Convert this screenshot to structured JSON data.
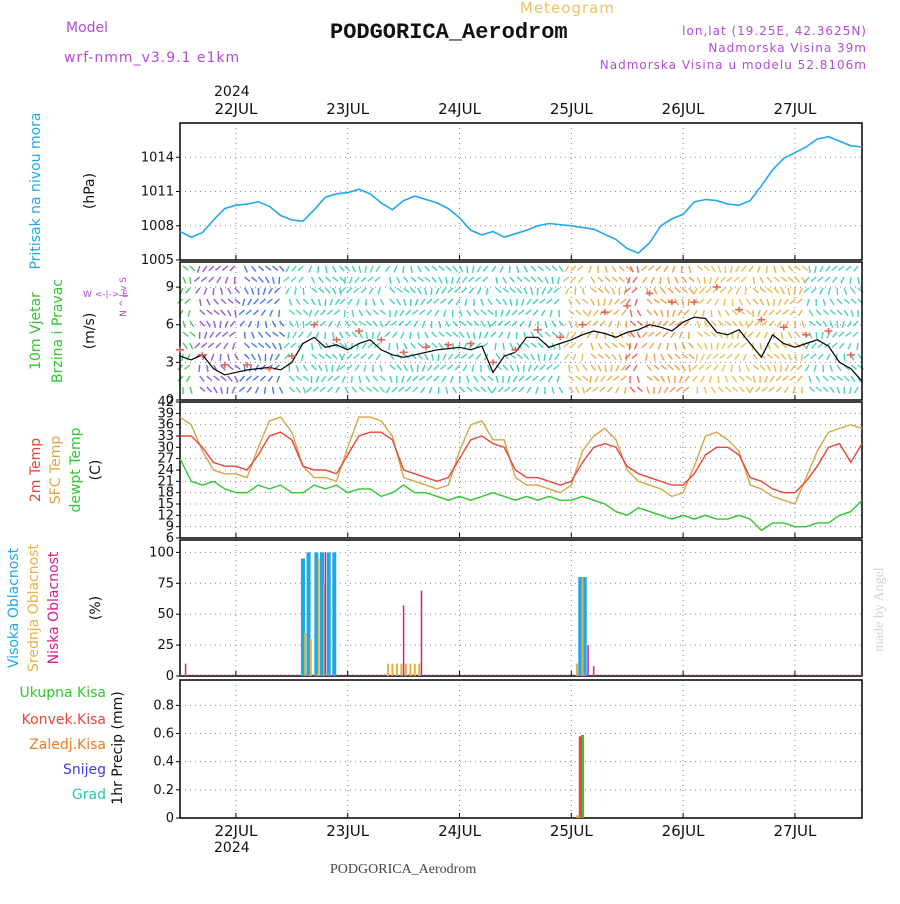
{
  "header": {
    "model_label": "Model",
    "model_name": "wrf-nmm_v3.9.1  e1km",
    "meteogram_label": "Meteogram",
    "station": "PODGORICA_Aerodrom",
    "lonlat": "lon,lat (19.25E, 42.3625N)",
    "elevation": "Nadmorska Visina 39m",
    "model_elevation": "Nadmorska Visina u modelu 52.8106m",
    "year": "2024",
    "footer_station": "PODGORICA_Aerodrom",
    "watermark": "made by Angel"
  },
  "colors": {
    "pressure": "#22a7f0",
    "temp2m": "#e8463a",
    "sfc": "#d8a545",
    "dewpt": "#2ec82e",
    "high_cloud": "#1ea8e8",
    "mid_cloud": "#e8b040",
    "low_cloud": "#d0208a",
    "purple": "#b44ad8",
    "orange": "#f0a020"
  },
  "chart_data": [
    {
      "type": "line",
      "panel": "pressure",
      "ylabel": [
        "Pritisak na nivou mora",
        "(hPa)"
      ],
      "ylim": [
        1005,
        1017
      ],
      "yticks": [
        1005,
        1008,
        1011,
        1014
      ],
      "x_labels": [
        "22JUL",
        "23JUL",
        "24JUL",
        "25JUL",
        "26JUL",
        "27JUL"
      ],
      "x_start_days": -0.5,
      "x_end_days": 5.6,
      "series": [
        {
          "x": [
            -0.5,
            -0.4,
            -0.3,
            -0.2,
            -0.1,
            0.0,
            0.1,
            0.2,
            0.3,
            0.4,
            0.5,
            0.6,
            0.7,
            0.8,
            0.9,
            1.0,
            1.1,
            1.2,
            1.3,
            1.4,
            1.5,
            1.6,
            1.7,
            1.8,
            1.9,
            2.0,
            2.1,
            2.2,
            2.3,
            2.4,
            2.5,
            2.6,
            2.7,
            2.8,
            3.0,
            3.2,
            3.4,
            3.5,
            3.6,
            3.7,
            3.8,
            3.9,
            4.0,
            4.1,
            4.2,
            4.3,
            4.4,
            4.5,
            4.6,
            4.7,
            4.8,
            4.9,
            5.0,
            5.1,
            5.2,
            5.3,
            5.4,
            5.5,
            5.6
          ],
          "values": [
            1007.5,
            1007.0,
            1007.4,
            1008.5,
            1009.5,
            1009.8,
            1009.9,
            1010.1,
            1009.7,
            1008.9,
            1008.5,
            1008.4,
            1009.4,
            1010.5,
            1010.8,
            1010.9,
            1011.2,
            1010.8,
            1010.0,
            1009.4,
            1010.2,
            1010.6,
            1010.3,
            1010.0,
            1009.5,
            1008.7,
            1007.6,
            1007.2,
            1007.5,
            1007.0,
            1007.3,
            1007.6,
            1008.0,
            1008.2,
            1008.0,
            1007.7,
            1006.8,
            1006.0,
            1005.6,
            1006.5,
            1008.0,
            1008.6,
            1009.0,
            1010.1,
            1010.3,
            1010.2,
            1009.9,
            1009.8,
            1010.2,
            1011.5,
            1012.9,
            1013.9,
            1014.4,
            1014.9,
            1015.6,
            1015.8,
            1015.4,
            1015.0,
            1014.9
          ]
        }
      ]
    },
    {
      "type": "line",
      "panel": "wind",
      "ylabel": [
        "10m Vjetar",
        "Brzina i Pravac",
        "(m/s)"
      ],
      "compass": "W <-|-> E",
      "compass_vert": "N ^ | v S",
      "ylim": [
        0,
        11
      ],
      "yticks": [
        0,
        3,
        6,
        9
      ],
      "series": [
        {
          "name": "speed",
          "x": [
            -0.5,
            -0.4,
            -0.3,
            -0.2,
            -0.1,
            0.0,
            0.1,
            0.2,
            0.3,
            0.4,
            0.5,
            0.6,
            0.7,
            0.8,
            0.9,
            1.0,
            1.1,
            1.2,
            1.3,
            1.4,
            1.5,
            1.6,
            1.7,
            1.8,
            1.9,
            2.0,
            2.1,
            2.2,
            2.3,
            2.4,
            2.5,
            2.6,
            2.7,
            2.8,
            2.9,
            3.0,
            3.1,
            3.2,
            3.3,
            3.4,
            3.5,
            3.6,
            3.7,
            3.8,
            3.9,
            4.0,
            4.1,
            4.2,
            4.3,
            4.4,
            4.5,
            4.6,
            4.7,
            4.8,
            4.9,
            5.0,
            5.1,
            5.2,
            5.3,
            5.4,
            5.5,
            5.6
          ],
          "values": [
            3.5,
            3.2,
            3.6,
            2.5,
            2.0,
            2.2,
            2.4,
            2.5,
            2.6,
            2.4,
            3.0,
            4.5,
            5.0,
            4.2,
            4.4,
            4.0,
            4.5,
            4.8,
            4.0,
            3.6,
            3.4,
            3.6,
            3.8,
            4.0,
            4.1,
            4.2,
            4.0,
            4.3,
            2.2,
            3.5,
            3.8,
            5.0,
            5.0,
            4.2,
            4.5,
            4.8,
            5.2,
            5.5,
            5.3,
            5.0,
            5.4,
            5.6,
            6.0,
            5.8,
            5.5,
            6.2,
            6.6,
            6.5,
            5.4,
            5.2,
            5.6,
            4.5,
            3.4,
            5.2,
            4.5,
            4.2,
            4.5,
            4.8,
            4.3,
            3.0,
            2.5,
            1.5
          ]
        },
        {
          "name": "gust",
          "x": [
            -0.5,
            -0.3,
            -0.1,
            0.1,
            0.3,
            0.5,
            0.7,
            0.9,
            1.1,
            1.3,
            1.5,
            1.7,
            1.9,
            2.1,
            2.3,
            2.5,
            2.7,
            2.9,
            3.1,
            3.3,
            3.5,
            3.7,
            3.9,
            4.1,
            4.3,
            4.5,
            4.7,
            4.9,
            5.1,
            5.3,
            5.5
          ],
          "values": [
            4.0,
            3.6,
            2.8,
            2.8,
            2.5,
            3.5,
            6.0,
            4.8,
            5.5,
            4.8,
            3.8,
            4.2,
            4.4,
            4.5,
            3.0,
            4.0,
            5.6,
            5.0,
            6.0,
            7.0,
            7.5,
            8.5,
            7.8,
            7.8,
            9.0,
            7.2,
            6.4,
            5.8,
            5.2,
            5.5,
            3.6
          ]
        }
      ]
    },
    {
      "type": "line",
      "panel": "temperature",
      "ylabel": [
        "2m Temp",
        "SFC Temp",
        "dewpt Temp",
        "(C)"
      ],
      "ylim": [
        6,
        42
      ],
      "yticks": [
        6,
        9,
        12,
        15,
        18,
        21,
        24,
        27,
        30,
        33,
        36,
        39,
        42
      ],
      "series": [
        {
          "name": "2m Temp",
          "x": [
            -0.5,
            -0.4,
            -0.3,
            -0.2,
            -0.1,
            0.0,
            0.1,
            0.2,
            0.3,
            0.4,
            0.5,
            0.6,
            0.7,
            0.8,
            0.9,
            1.0,
            1.1,
            1.2,
            1.3,
            1.4,
            1.5,
            1.6,
            1.7,
            1.8,
            1.9,
            2.0,
            2.1,
            2.2,
            2.3,
            2.4,
            2.5,
            2.6,
            2.7,
            2.8,
            2.9,
            3.0,
            3.1,
            3.2,
            3.3,
            3.4,
            3.5,
            3.6,
            3.7,
            3.8,
            3.9,
            4.0,
            4.1,
            4.2,
            4.3,
            4.4,
            4.5,
            4.6,
            4.7,
            4.8,
            4.9,
            5.0,
            5.1,
            5.2,
            5.3,
            5.4,
            5.5,
            5.6
          ],
          "values": [
            33,
            33,
            30,
            26,
            25,
            25,
            24,
            28,
            33,
            34,
            32,
            25,
            24,
            24,
            23,
            28,
            33,
            34,
            34,
            32,
            24,
            23,
            22,
            21,
            22,
            27,
            32,
            33,
            31,
            30,
            24,
            22,
            22,
            21,
            20,
            21,
            26,
            30,
            31,
            30,
            25,
            23,
            22,
            21,
            20,
            20,
            23,
            28,
            30,
            30,
            28,
            22,
            21,
            19,
            18,
            18,
            21,
            25,
            30,
            31,
            26,
            31
          ]
        },
        {
          "name": "SFC Temp",
          "x": [
            -0.5,
            -0.4,
            -0.3,
            -0.2,
            -0.1,
            0.0,
            0.1,
            0.2,
            0.3,
            0.4,
            0.5,
            0.6,
            0.7,
            0.8,
            0.9,
            1.0,
            1.1,
            1.2,
            1.3,
            1.4,
            1.5,
            1.6,
            1.7,
            1.8,
            1.9,
            2.0,
            2.1,
            2.2,
            2.3,
            2.4,
            2.5,
            2.6,
            2.7,
            2.8,
            2.9,
            3.0,
            3.1,
            3.2,
            3.3,
            3.4,
            3.5,
            3.6,
            3.7,
            3.8,
            3.9,
            4.0,
            4.1,
            4.2,
            4.3,
            4.4,
            4.5,
            4.6,
            4.7,
            4.8,
            4.9,
            5.0,
            5.1,
            5.2,
            5.3,
            5.4,
            5.5,
            5.6
          ],
          "values": [
            38,
            36,
            29,
            24,
            23,
            23,
            22,
            30,
            37,
            38,
            34,
            25,
            22,
            22,
            21,
            30,
            38,
            38,
            37,
            33,
            22,
            21,
            20,
            19,
            20,
            29,
            36,
            37,
            32,
            32,
            22,
            20,
            20,
            19,
            18,
            20,
            29,
            33,
            35,
            32,
            24,
            21,
            20,
            19,
            17,
            18,
            25,
            33,
            34,
            32,
            29,
            20,
            19,
            17,
            16,
            15,
            22,
            29,
            34,
            35,
            36,
            35
          ]
        },
        {
          "name": "dewpt Temp",
          "x": [
            -0.5,
            -0.4,
            -0.3,
            -0.2,
            -0.1,
            0.0,
            0.1,
            0.2,
            0.3,
            0.4,
            0.5,
            0.6,
            0.7,
            0.8,
            0.9,
            1.0,
            1.1,
            1.2,
            1.3,
            1.4,
            1.5,
            1.6,
            1.7,
            1.8,
            1.9,
            2.0,
            2.1,
            2.2,
            2.3,
            2.4,
            2.5,
            2.6,
            2.7,
            2.8,
            2.9,
            3.0,
            3.1,
            3.2,
            3.3,
            3.4,
            3.5,
            3.6,
            3.7,
            3.8,
            3.9,
            4.0,
            4.1,
            4.2,
            4.3,
            4.4,
            4.5,
            4.6,
            4.7,
            4.8,
            4.9,
            5.0,
            5.1,
            5.2,
            5.3,
            5.4,
            5.5,
            5.6
          ],
          "values": [
            27,
            21,
            20,
            21,
            19,
            18,
            18,
            20,
            19,
            20,
            18,
            18,
            20,
            19,
            20,
            18,
            19,
            19,
            17,
            18,
            20,
            18,
            18,
            17,
            16,
            17,
            16,
            17,
            18,
            17,
            16,
            17,
            16,
            17,
            16,
            16,
            17,
            16,
            15,
            13,
            12,
            14,
            13,
            12,
            11,
            12,
            11,
            12,
            11,
            11,
            12,
            11,
            8,
            10,
            10,
            9,
            9,
            10,
            10,
            12,
            13,
            16
          ]
        }
      ]
    },
    {
      "type": "bar",
      "panel": "clouds",
      "ylabel": [
        "Visoka Oblacnost",
        "Srednja Oblacnost",
        "Niska Oblacnost",
        "(%)"
      ],
      "ylim": [
        0,
        110
      ],
      "yticks": [
        0,
        25,
        50,
        75,
        100
      ],
      "series": [
        {
          "name": "Visoka Oblacnost",
          "x": [
            0.6,
            0.65,
            0.72,
            0.77,
            0.83,
            0.88,
            3.08,
            3.12
          ],
          "values": [
            95,
            100,
            100,
            100,
            100,
            100,
            80,
            80
          ]
        },
        {
          "name": "Srednja Oblacnost",
          "x": [
            0.62,
            0.67,
            0.74,
            0.79,
            1.36,
            1.4,
            1.44,
            1.48,
            1.52,
            1.56,
            1.6,
            1.64,
            3.05,
            3.1
          ],
          "values": [
            35,
            30,
            95,
            75,
            10,
            10,
            10,
            10,
            10,
            10,
            10,
            10,
            10,
            80
          ]
        },
        {
          "name": "Niska Oblacnost",
          "x": [
            -0.45,
            0.8,
            1.5,
            1.66,
            3.15,
            3.2
          ],
          "values": [
            10,
            100,
            57,
            69,
            25,
            8
          ]
        }
      ]
    },
    {
      "type": "bar",
      "panel": "precip",
      "ylabel": [
        "1hr Precip (mm)"
      ],
      "legend": [
        "Ukupna Kisa",
        "Konvek.Kisa",
        "Zaledj.Kisa",
        "Snijeg",
        "Grad"
      ],
      "ylim": [
        0,
        0.98
      ],
      "yticks": [
        0,
        0.2,
        0.4,
        0.6,
        0.8
      ],
      "series": [
        {
          "name": "Ukupna Kisa",
          "x": [
            3.1
          ],
          "values": [
            0.59
          ]
        },
        {
          "name": "Konvek.Kisa",
          "x": [
            3.08
          ],
          "values": [
            0.58
          ]
        },
        {
          "name": "Zaledj.Kisa",
          "x": [
            3.06
          ],
          "values": [
            0.02
          ]
        }
      ]
    }
  ]
}
